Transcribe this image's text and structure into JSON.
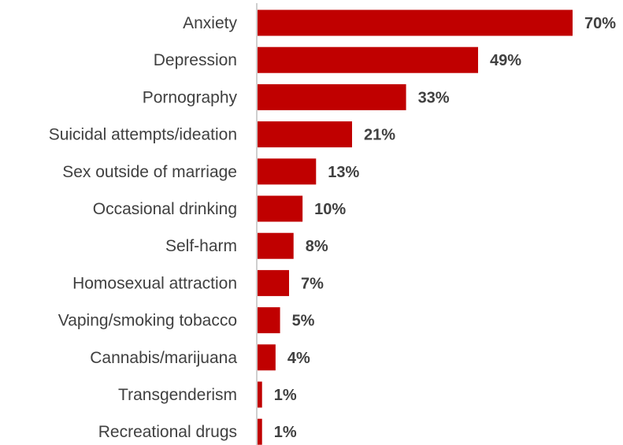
{
  "chart_data": {
    "type": "bar",
    "orientation": "horizontal",
    "categories": [
      "Anxiety",
      "Depression",
      "Pornography",
      "Suicidal attempts/ideation",
      "Sex outside of marriage",
      "Occasional drinking",
      "Self-harm",
      "Homosexual attraction",
      "Vaping/smoking tobacco",
      "Cannabis/marijuana",
      "Transgenderism",
      "Recreational drugs"
    ],
    "values": [
      70,
      49,
      33,
      21,
      13,
      10,
      8,
      7,
      5,
      4,
      1,
      1
    ],
    "value_labels": [
      "70%",
      "49%",
      "33%",
      "21%",
      "13%",
      "10%",
      "8%",
      "7%",
      "5%",
      "4%",
      "1%",
      "1%"
    ],
    "unit": "%",
    "bar_color": "#c00000",
    "text_color": "#404040",
    "grid": false,
    "legend": "none",
    "xlim": [
      0,
      70
    ]
  }
}
